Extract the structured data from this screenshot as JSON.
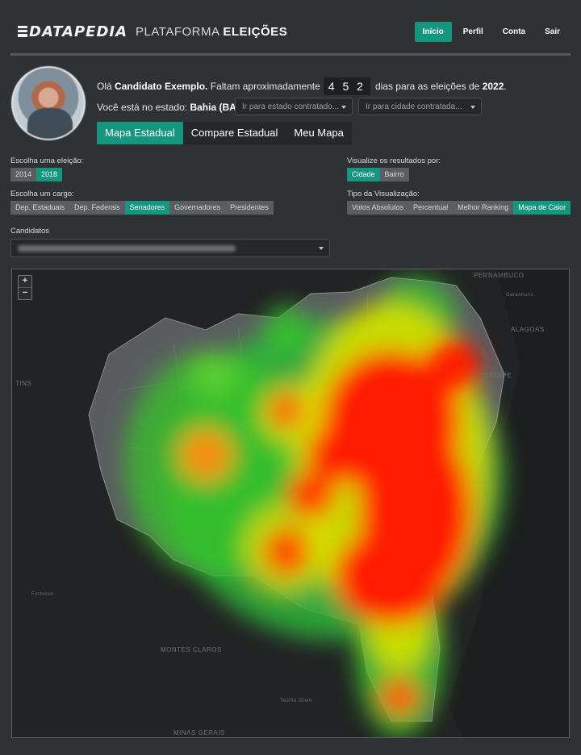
{
  "header": {
    "logo": "DATAPEDIA",
    "platform_prefix": "PLATAFORMA",
    "platform_bold": "ELEIÇÕES",
    "nav": [
      "Início",
      "Perfil",
      "Conta",
      "Sair"
    ],
    "nav_active": "Início",
    "accent_color": "#14967f"
  },
  "profile": {
    "greeting_prefix": "Olá",
    "candidate_name": "Candidato Exemplo.",
    "countdown_text": "Faltam aproximadamente",
    "days": "4 5 2",
    "days_suffix": "dias para as eleições de",
    "election_year": "2022",
    "state_prefix": "Você está no estado:",
    "state": "Bahia (BA)",
    "estado_placeholder": "Ir para estado contratado...",
    "cidade_placeholder": "Ir para cidade contratada..."
  },
  "tabs": [
    "Mapa Estadual",
    "Compare Estadual",
    "Meu Mapa"
  ],
  "filters": {
    "election_label": "Escolha uma eleição:",
    "elections": [
      "2014",
      "2018"
    ],
    "election_active": "2018",
    "cargo_label": "Escolha um cargo:",
    "cargos": [
      "Dep. Estaduais",
      "Dep. Federais",
      "Senadores",
      "Governadores",
      "Presidentes"
    ],
    "cargo_active": "Senadores",
    "results_label": "Visualize os resultados por:",
    "results": [
      "Cidade",
      "Bairro"
    ],
    "results_active": "Cidade",
    "viz_label": "Tipo da Visualização:",
    "viz": [
      "Votos Absolutos",
      "Percentual",
      "Melhor Ranking",
      "Mapa de Calor"
    ],
    "viz_active": "Mapa de Calor",
    "candidates_label": "Candidatos"
  },
  "map": {
    "zoom_in": "+",
    "zoom_out": "−",
    "labels": {
      "pernambuco": "PERNAMBUCO",
      "garanhuns": "Garanhuns",
      "alagoas": "ALAGOAS",
      "sergipe": "SERGIPE",
      "tins": "TINS",
      "formosa": "Formoso",
      "montes_claros": "MONTES CLAROS",
      "teofilo": "Teófilo Otoni",
      "minas": "MINAS GERAIS"
    },
    "heat_colors": [
      "#ff1a00",
      "#ff6a00",
      "#d7e000",
      "#35c629",
      "#138a7a"
    ]
  }
}
